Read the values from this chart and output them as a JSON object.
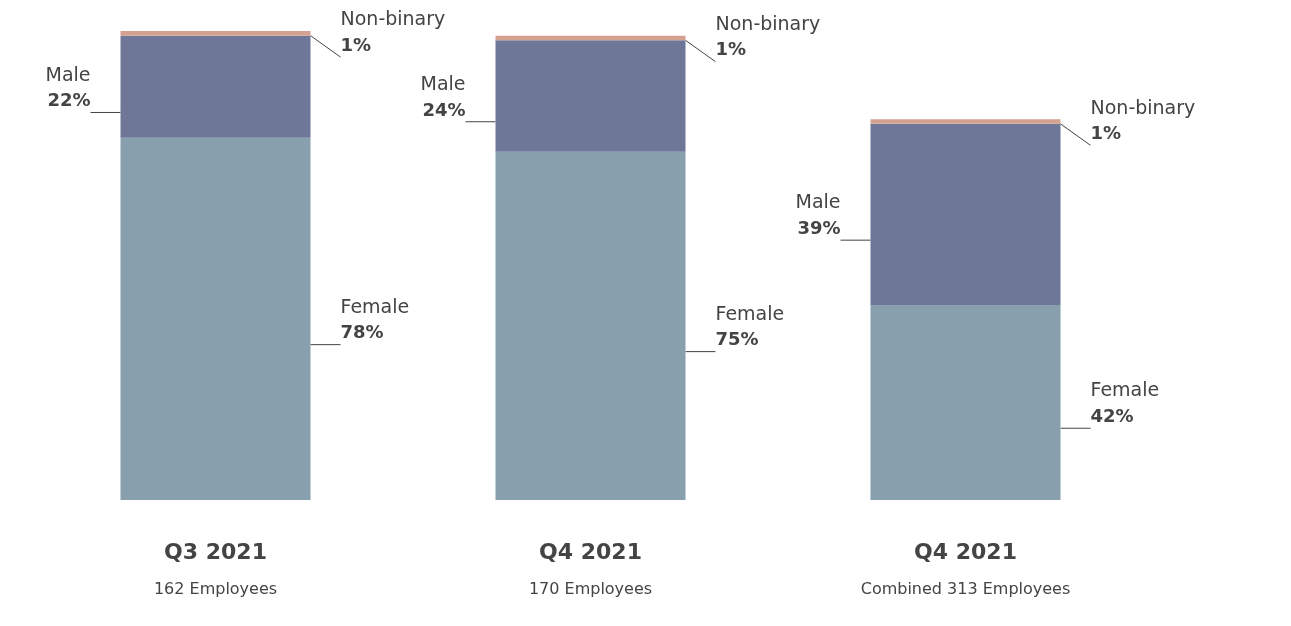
{
  "chart_data": {
    "type": "bar",
    "stacked": true,
    "categories": [
      "Q3 2021",
      "Q4 2021",
      "Q4 2021"
    ],
    "series": [
      {
        "name": "Female",
        "color": "#889fad",
        "values": [
          78,
          75,
          42
        ],
        "value_labels": [
          "78%",
          "75%",
          "42%"
        ]
      },
      {
        "name": "Male",
        "color": "#6e7797",
        "values": [
          22,
          24,
          39
        ],
        "value_labels": [
          "22%",
          "24%",
          "39%"
        ]
      },
      {
        "name": "Non-binary",
        "color": "#d4a090",
        "values": [
          1,
          1,
          1
        ],
        "value_labels": [
          "1%",
          "1%",
          "1%"
        ]
      }
    ],
    "ylim": [
      0,
      101
    ],
    "annotations": [
      "162 Employees",
      "170 Employees",
      "Combined 313 Employees"
    ],
    "legend": false,
    "grid": false
  }
}
